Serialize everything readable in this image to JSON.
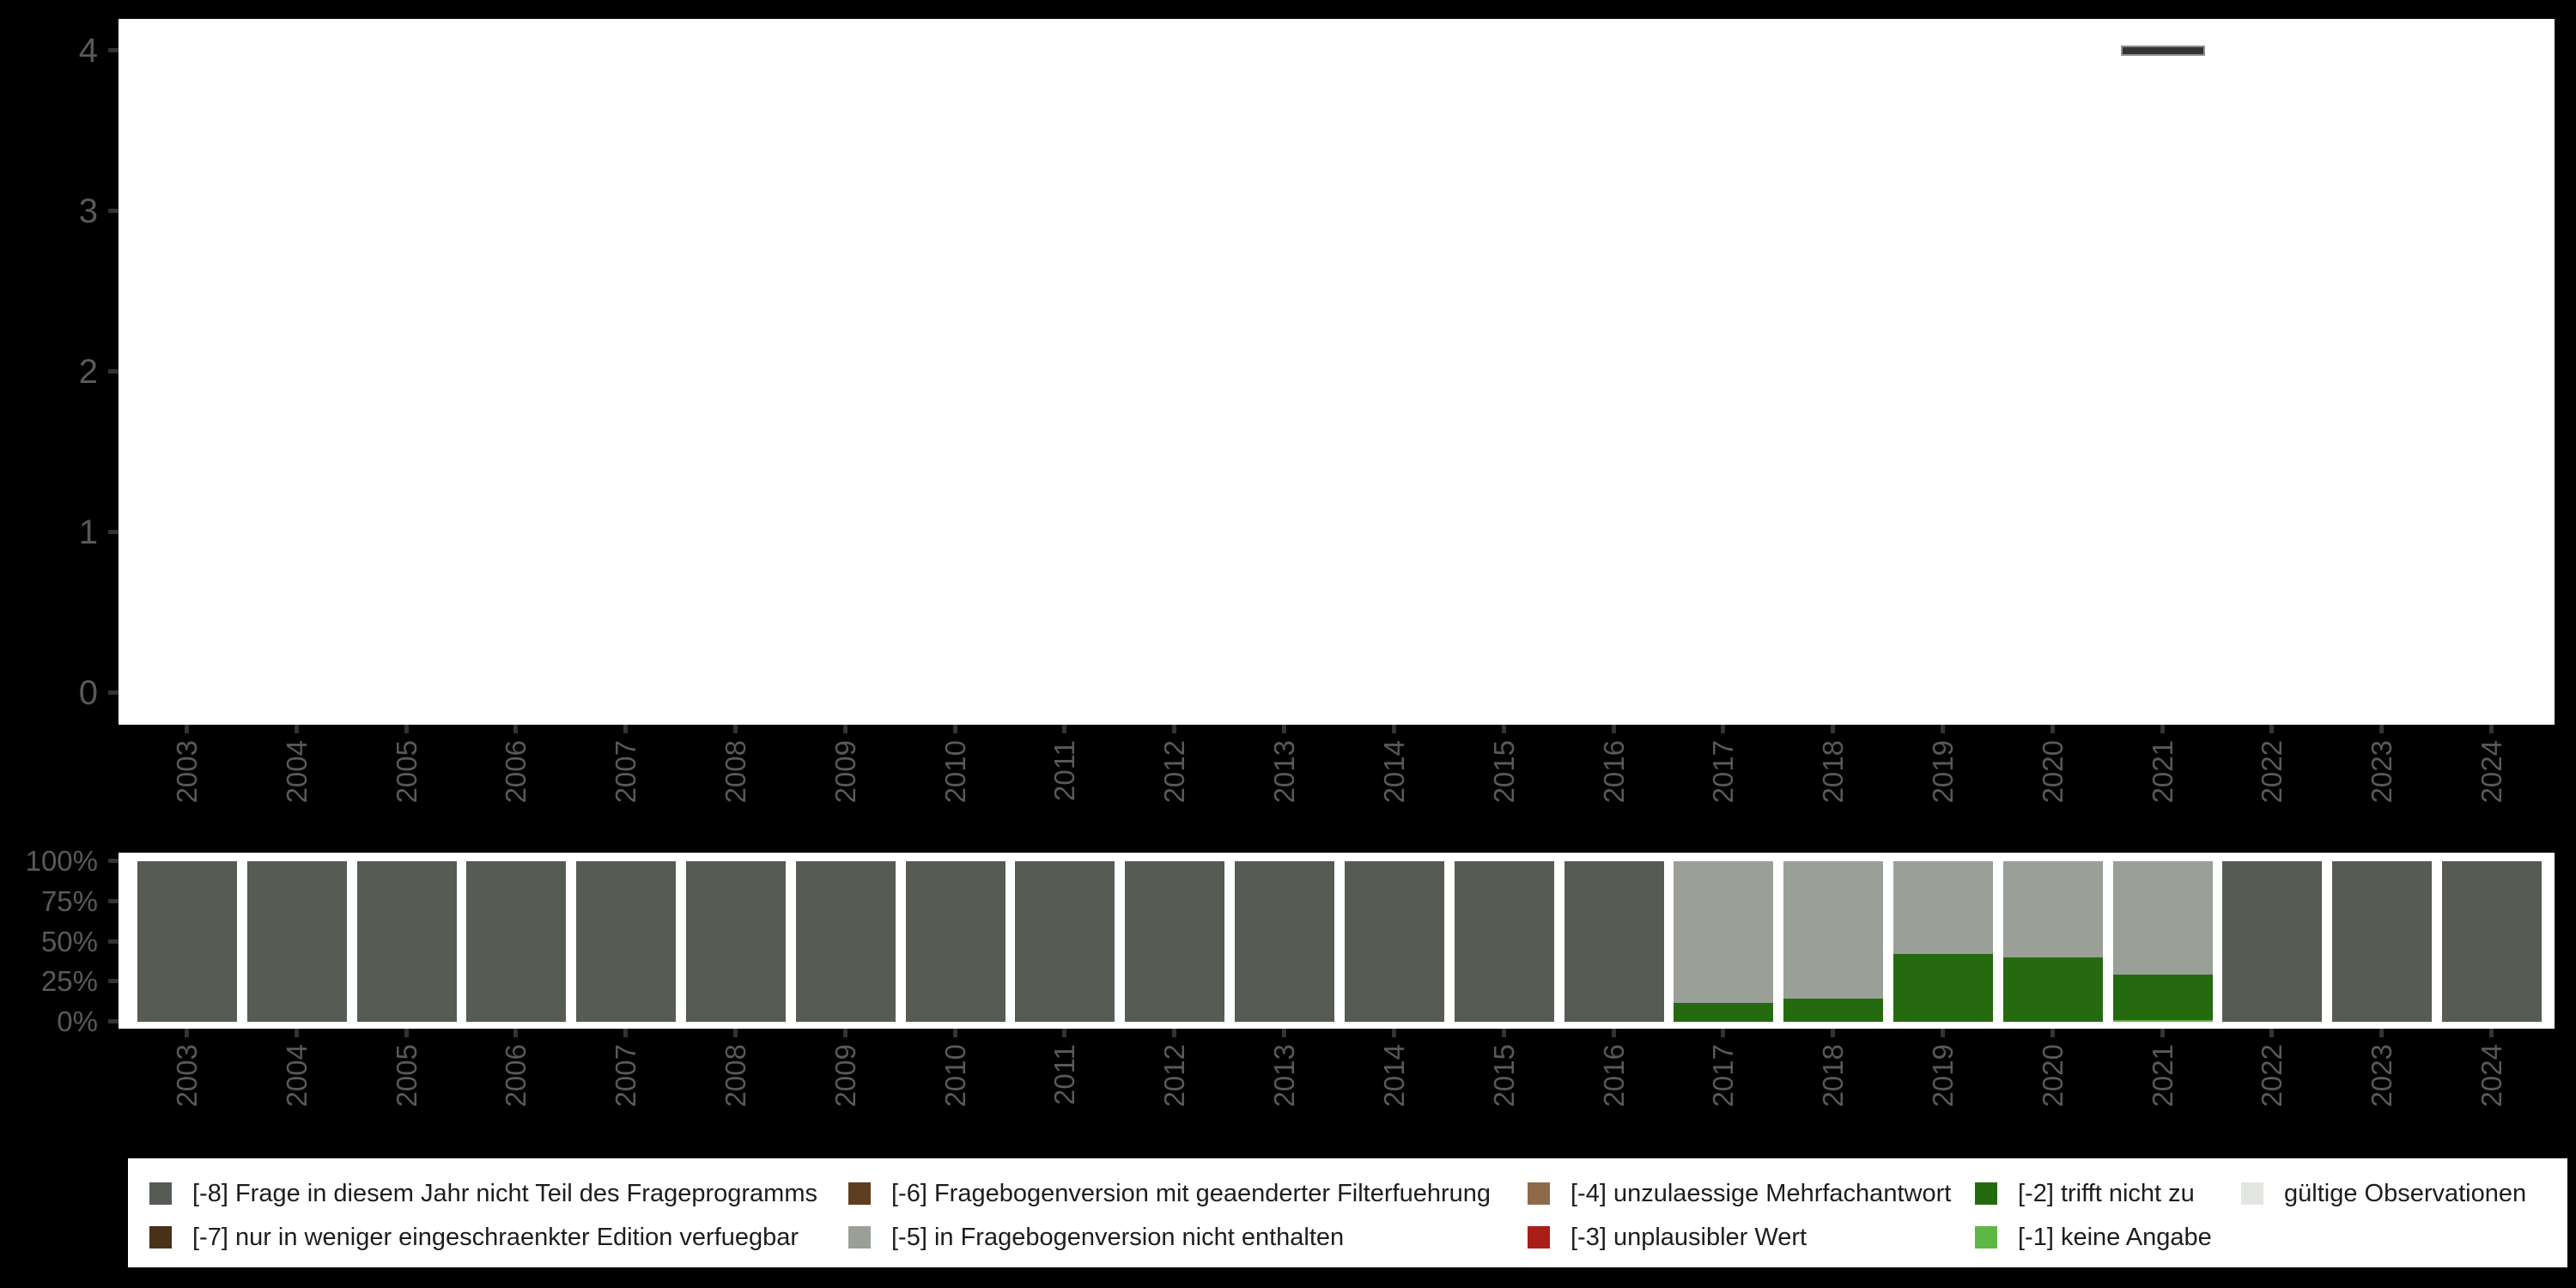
{
  "colors": {
    "background": "#000000",
    "plot_background": "#ffffff",
    "axis_text": "#595959",
    "tick_mark": "#333333",
    "legend_text": "#1d1d1d",
    "mark_fill": "#333333",
    "mark_border": "#8f8f8f",
    "codes": {
      "-8": "#565c54",
      "-7": "#4a3119",
      "-6": "#5e3d20",
      "-5": "#9aa098",
      "-4": "#8c6a4a",
      "-3": "#a81f1a",
      "-2": "#266a10",
      "-1": "#5cb744",
      "valid": "#e3e6e0"
    }
  },
  "years": [
    "2003",
    "2004",
    "2005",
    "2006",
    "2007",
    "2008",
    "2009",
    "2010",
    "2011",
    "2012",
    "2013",
    "2014",
    "2015",
    "2016",
    "2017",
    "2018",
    "2019",
    "2020",
    "2021",
    "2022",
    "2023",
    "2024"
  ],
  "top_chart": {
    "ylim": [
      0,
      4
    ],
    "y_ticks": [
      {
        "value": 4,
        "label": "4"
      },
      {
        "value": 3,
        "label": "3"
      },
      {
        "value": 2,
        "label": "2"
      },
      {
        "value": 1,
        "label": "1"
      },
      {
        "value": 0,
        "label": "0"
      }
    ],
    "marks": [
      {
        "year": "2021",
        "value": 4
      }
    ]
  },
  "bottom_chart": {
    "y_ticks": [
      {
        "value": 100,
        "label": "100%"
      },
      {
        "value": 75,
        "label": "75%"
      },
      {
        "value": 50,
        "label": "50%"
      },
      {
        "value": 25,
        "label": "25%"
      },
      {
        "value": 0,
        "label": "0%"
      }
    ],
    "bars": [
      {
        "year": "2003",
        "segments": [
          {
            "code": "-8",
            "pct": 100
          }
        ]
      },
      {
        "year": "2004",
        "segments": [
          {
            "code": "-8",
            "pct": 100
          }
        ]
      },
      {
        "year": "2005",
        "segments": [
          {
            "code": "-8",
            "pct": 100
          }
        ]
      },
      {
        "year": "2006",
        "segments": [
          {
            "code": "-8",
            "pct": 100
          }
        ]
      },
      {
        "year": "2007",
        "segments": [
          {
            "code": "-8",
            "pct": 100
          }
        ]
      },
      {
        "year": "2008",
        "segments": [
          {
            "code": "-8",
            "pct": 100
          }
        ]
      },
      {
        "year": "2009",
        "segments": [
          {
            "code": "-8",
            "pct": 100
          }
        ]
      },
      {
        "year": "2010",
        "segments": [
          {
            "code": "-8",
            "pct": 100
          }
        ]
      },
      {
        "year": "2011",
        "segments": [
          {
            "code": "-8",
            "pct": 100
          }
        ]
      },
      {
        "year": "2012",
        "segments": [
          {
            "code": "-8",
            "pct": 100
          }
        ]
      },
      {
        "year": "2013",
        "segments": [
          {
            "code": "-8",
            "pct": 100
          }
        ]
      },
      {
        "year": "2014",
        "segments": [
          {
            "code": "-8",
            "pct": 100
          }
        ]
      },
      {
        "year": "2015",
        "segments": [
          {
            "code": "-8",
            "pct": 100
          }
        ]
      },
      {
        "year": "2016",
        "segments": [
          {
            "code": "-8",
            "pct": 100
          }
        ]
      },
      {
        "year": "2017",
        "segments": [
          {
            "code": "-2",
            "pct": 12
          },
          {
            "code": "-5",
            "pct": 88
          }
        ]
      },
      {
        "year": "2018",
        "segments": [
          {
            "code": "-2",
            "pct": 14.5
          },
          {
            "code": "-5",
            "pct": 85.5
          }
        ]
      },
      {
        "year": "2019",
        "segments": [
          {
            "code": "-2",
            "pct": 42.5
          },
          {
            "code": "-5",
            "pct": 57.5
          }
        ]
      },
      {
        "year": "2020",
        "segments": [
          {
            "code": "-2",
            "pct": 40
          },
          {
            "code": "-5",
            "pct": 60
          }
        ]
      },
      {
        "year": "2021",
        "segments": [
          {
            "code": "-1",
            "pct": 1
          },
          {
            "code": "-2",
            "pct": 28.5
          },
          {
            "code": "-5",
            "pct": 70.5
          }
        ]
      },
      {
        "year": "2022",
        "segments": [
          {
            "code": "-8",
            "pct": 100
          }
        ]
      },
      {
        "year": "2023",
        "segments": [
          {
            "code": "-8",
            "pct": 100
          }
        ]
      },
      {
        "year": "2024",
        "segments": [
          {
            "code": "-8",
            "pct": 100
          }
        ]
      }
    ]
  },
  "legend": {
    "items": [
      {
        "code": "-8",
        "label": "[-8] Frage in diesem Jahr nicht Teil des Frageprogramms",
        "col": 0,
        "row": 0
      },
      {
        "code": "-7",
        "label": "[-7] nur in weniger eingeschraenkter Edition verfuegbar",
        "col": 0,
        "row": 1
      },
      {
        "code": "-6",
        "label": "[-6] Fragebogenversion mit geaenderter Filterfuehrung",
        "col": 1,
        "row": 0
      },
      {
        "code": "-5",
        "label": "[-5] in Fragebogenversion nicht enthalten",
        "col": 1,
        "row": 1
      },
      {
        "code": "-4",
        "label": "[-4] unzulaessige Mehrfachantwort",
        "col": 2,
        "row": 0
      },
      {
        "code": "-3",
        "label": "[-3] unplausibler Wert",
        "col": 2,
        "row": 1
      },
      {
        "code": "-2",
        "label": "[-2] trifft nicht zu",
        "col": 3,
        "row": 0
      },
      {
        "code": "-1",
        "label": "[-1] keine Angabe",
        "col": 3,
        "row": 1
      },
      {
        "code": "valid",
        "label": "gültige Observationen",
        "col": 4,
        "row": 0
      }
    ]
  },
  "chart_data": [
    {
      "type": "bar",
      "title": "",
      "xlabel": "",
      "ylabel": "",
      "categories": [
        "2003",
        "2004",
        "2005",
        "2006",
        "2007",
        "2008",
        "2009",
        "2010",
        "2011",
        "2012",
        "2013",
        "2014",
        "2015",
        "2016",
        "2017",
        "2018",
        "2019",
        "2020",
        "2021",
        "2022",
        "2023",
        "2024"
      ],
      "values": [
        null,
        null,
        null,
        null,
        null,
        null,
        null,
        null,
        null,
        null,
        null,
        null,
        null,
        null,
        null,
        null,
        null,
        null,
        4,
        null,
        null,
        null
      ],
      "ylim": [
        0,
        4
      ],
      "ytick_labels": [
        "0",
        "1",
        "2",
        "3",
        "4"
      ],
      "grid": false,
      "annotations": [
        "single dark gray dash mark at x=2021, y=4"
      ]
    },
    {
      "type": "bar",
      "stacked": true,
      "percent": true,
      "title": "",
      "xlabel": "",
      "ylabel": "",
      "categories": [
        "2003",
        "2004",
        "2005",
        "2006",
        "2007",
        "2008",
        "2009",
        "2010",
        "2011",
        "2012",
        "2013",
        "2014",
        "2015",
        "2016",
        "2017",
        "2018",
        "2019",
        "2020",
        "2021",
        "2022",
        "2023",
        "2024"
      ],
      "series": [
        {
          "name": "[-8] Frage in diesem Jahr nicht Teil des Frageprogramms",
          "color": "#565c54",
          "values": [
            100,
            100,
            100,
            100,
            100,
            100,
            100,
            100,
            100,
            100,
            100,
            100,
            100,
            100,
            0,
            0,
            0,
            0,
            0,
            100,
            100,
            100
          ]
        },
        {
          "name": "[-5] in Fragebogenversion nicht enthalten",
          "color": "#9aa098",
          "values": [
            0,
            0,
            0,
            0,
            0,
            0,
            0,
            0,
            0,
            0,
            0,
            0,
            0,
            0,
            88,
            85.5,
            57.5,
            60,
            70.5,
            0,
            0,
            0
          ]
        },
        {
          "name": "[-2] trifft nicht zu",
          "color": "#266a10",
          "values": [
            0,
            0,
            0,
            0,
            0,
            0,
            0,
            0,
            0,
            0,
            0,
            0,
            0,
            0,
            12,
            14.5,
            42.5,
            40,
            28.5,
            0,
            0,
            0
          ]
        },
        {
          "name": "[-1] keine Angabe",
          "color": "#5cb744",
          "values": [
            0,
            0,
            0,
            0,
            0,
            0,
            0,
            0,
            0,
            0,
            0,
            0,
            0,
            0,
            0,
            0,
            0,
            0,
            1,
            0,
            0,
            0
          ]
        }
      ],
      "ytick_labels": [
        "0%",
        "25%",
        "50%",
        "75%",
        "100%"
      ],
      "ylim": [
        0,
        100
      ],
      "grid": false,
      "legend_position": "bottom"
    }
  ]
}
